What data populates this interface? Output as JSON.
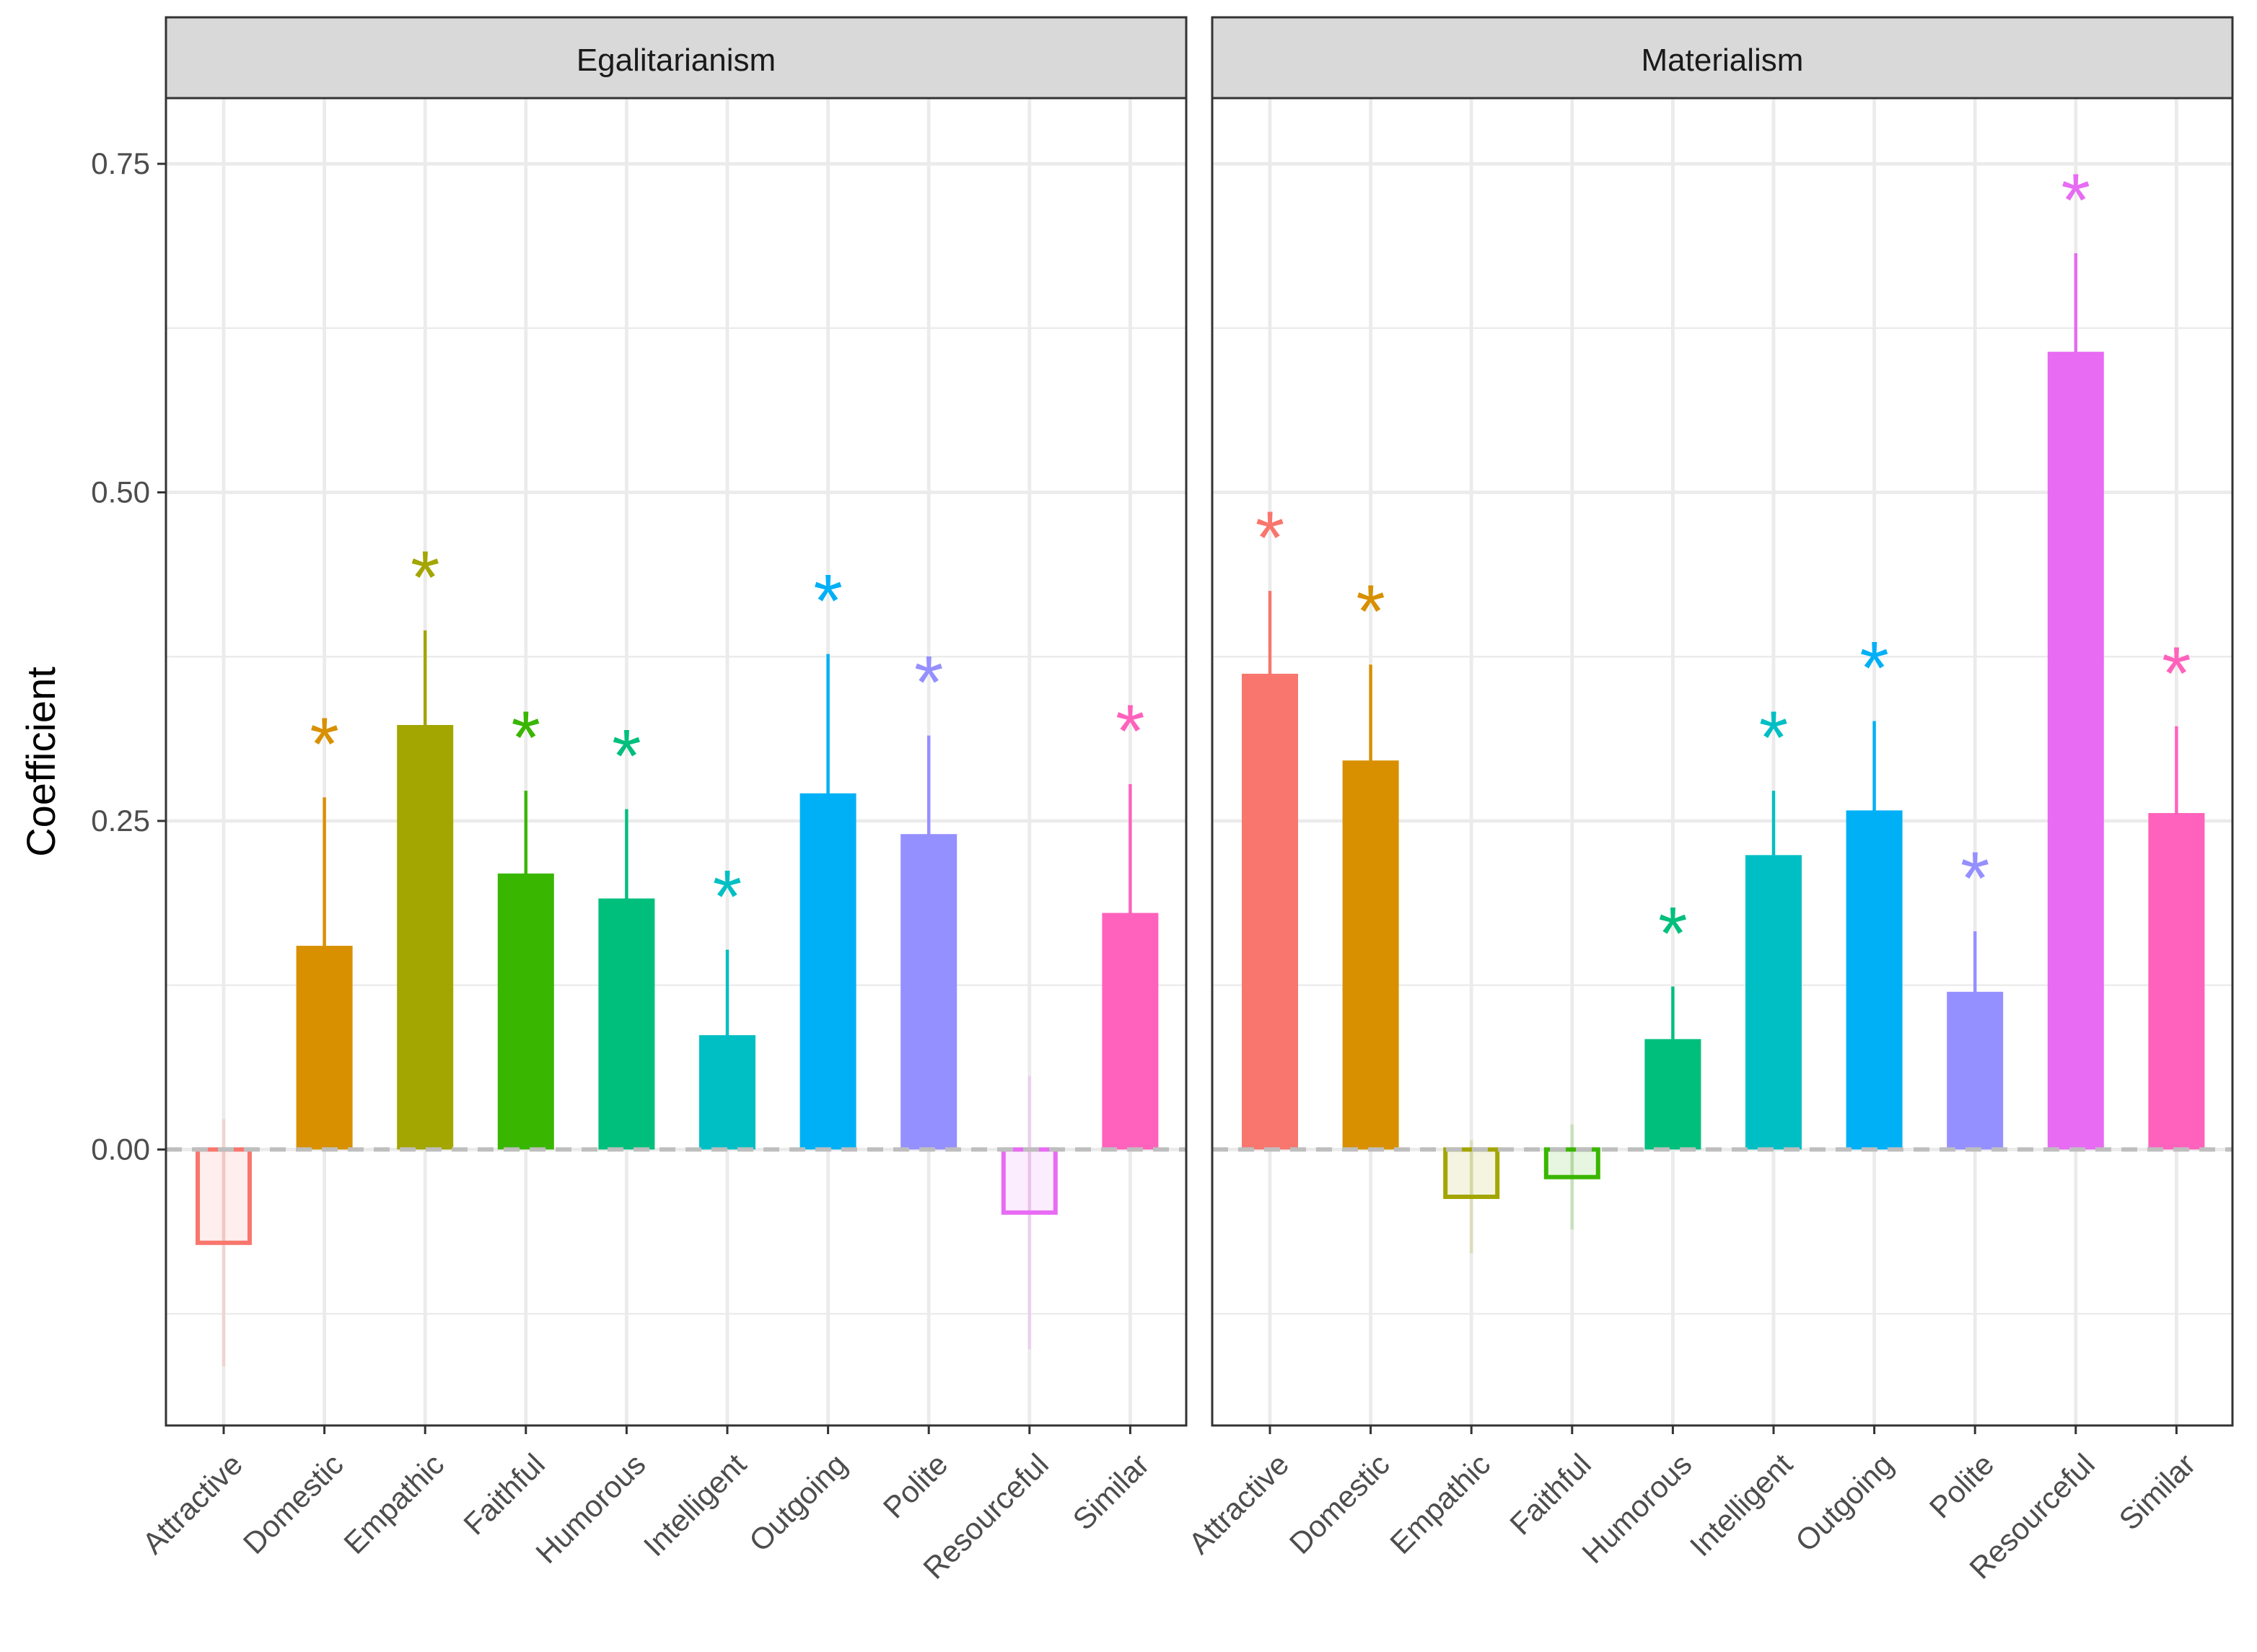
{
  "chart_data": {
    "type": "bar",
    "ylabel": "Coefficient",
    "xlabel": "",
    "ylim": [
      -0.21,
      0.8
    ],
    "yticks": [
      0.0,
      0.25,
      0.5,
      0.75
    ],
    "ytick_labels": [
      "0.00",
      "0.25",
      "0.50",
      "0.75"
    ],
    "grid": true,
    "reference_line": 0,
    "significance_marker": "*",
    "categories": [
      "Attractive",
      "Domestic",
      "Empathic",
      "Faithful",
      "Humorous",
      "Intelligent",
      "Outgoing",
      "Polite",
      "Resourceful",
      "Similar"
    ],
    "colors": [
      "#F8766D",
      "#D89000",
      "#A3A500",
      "#39B600",
      "#00BF7D",
      "#00BFC4",
      "#00B0F6",
      "#9590FF",
      "#E76BF3",
      "#FF62BC"
    ],
    "panels": [
      {
        "title": "Egalitarianism",
        "values": [
          -0.071,
          0.155,
          0.323,
          0.21,
          0.191,
          0.087,
          0.271,
          0.24,
          -0.048,
          0.18
        ],
        "upper": [
          0.023,
          0.268,
          0.395,
          0.273,
          0.259,
          0.152,
          0.377,
          0.315,
          0.056,
          0.278
        ],
        "significant": [
          false,
          true,
          true,
          true,
          true,
          true,
          true,
          true,
          false,
          true
        ]
      },
      {
        "title": "Materialism",
        "values": [
          0.362,
          0.296,
          -0.036,
          -0.021,
          0.084,
          0.224,
          0.258,
          0.12,
          0.607,
          0.256
        ],
        "upper": [
          0.425,
          0.369,
          0.007,
          0.019,
          0.124,
          0.273,
          0.326,
          0.166,
          0.682,
          0.322
        ],
        "significant": [
          true,
          true,
          false,
          false,
          true,
          true,
          true,
          true,
          true,
          true
        ]
      }
    ]
  }
}
